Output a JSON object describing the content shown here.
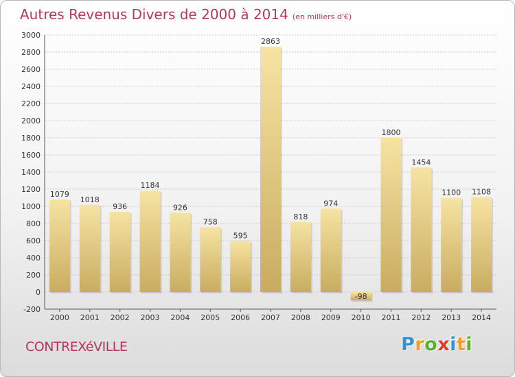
{
  "title": "Autres Revenus Divers de 2000 à 2014",
  "subtitle": "(en milliers d'€)",
  "city": "CONTREXéVILLE",
  "logo": {
    "letters": [
      "P",
      "r",
      "o",
      "x",
      "i",
      "t",
      "i"
    ],
    "colors": [
      "#3a8fd0",
      "#f0a020",
      "#5bb030",
      "#e23a2a",
      "#3a8fd0",
      "#f0a020",
      "#5bb030"
    ]
  },
  "colors": {
    "title": "#b0395a",
    "bar_light": "#f6e3a3",
    "bar_dark": "#c9ac60",
    "grid": "#c8c8c8"
  },
  "chart_data": {
    "type": "bar",
    "title": "Autres Revenus Divers de 2000 à 2014",
    "unit": "(en milliers d'€)",
    "categories": [
      "2000",
      "2001",
      "2002",
      "2003",
      "2004",
      "2005",
      "2006",
      "2007",
      "2008",
      "2009",
      "2010",
      "2011",
      "2012",
      "2013",
      "2014"
    ],
    "values": [
      1079,
      1018,
      936,
      1184,
      926,
      758,
      595,
      2863,
      818,
      974,
      -98,
      1800,
      1454,
      1100,
      1108
    ],
    "ylim": [
      -200,
      3000
    ],
    "yticks": [
      -200,
      0,
      200,
      400,
      600,
      800,
      1000,
      1200,
      1400,
      1600,
      1800,
      2000,
      2200,
      2400,
      2600,
      2800,
      3000
    ],
    "grid": true,
    "legend": "none"
  }
}
